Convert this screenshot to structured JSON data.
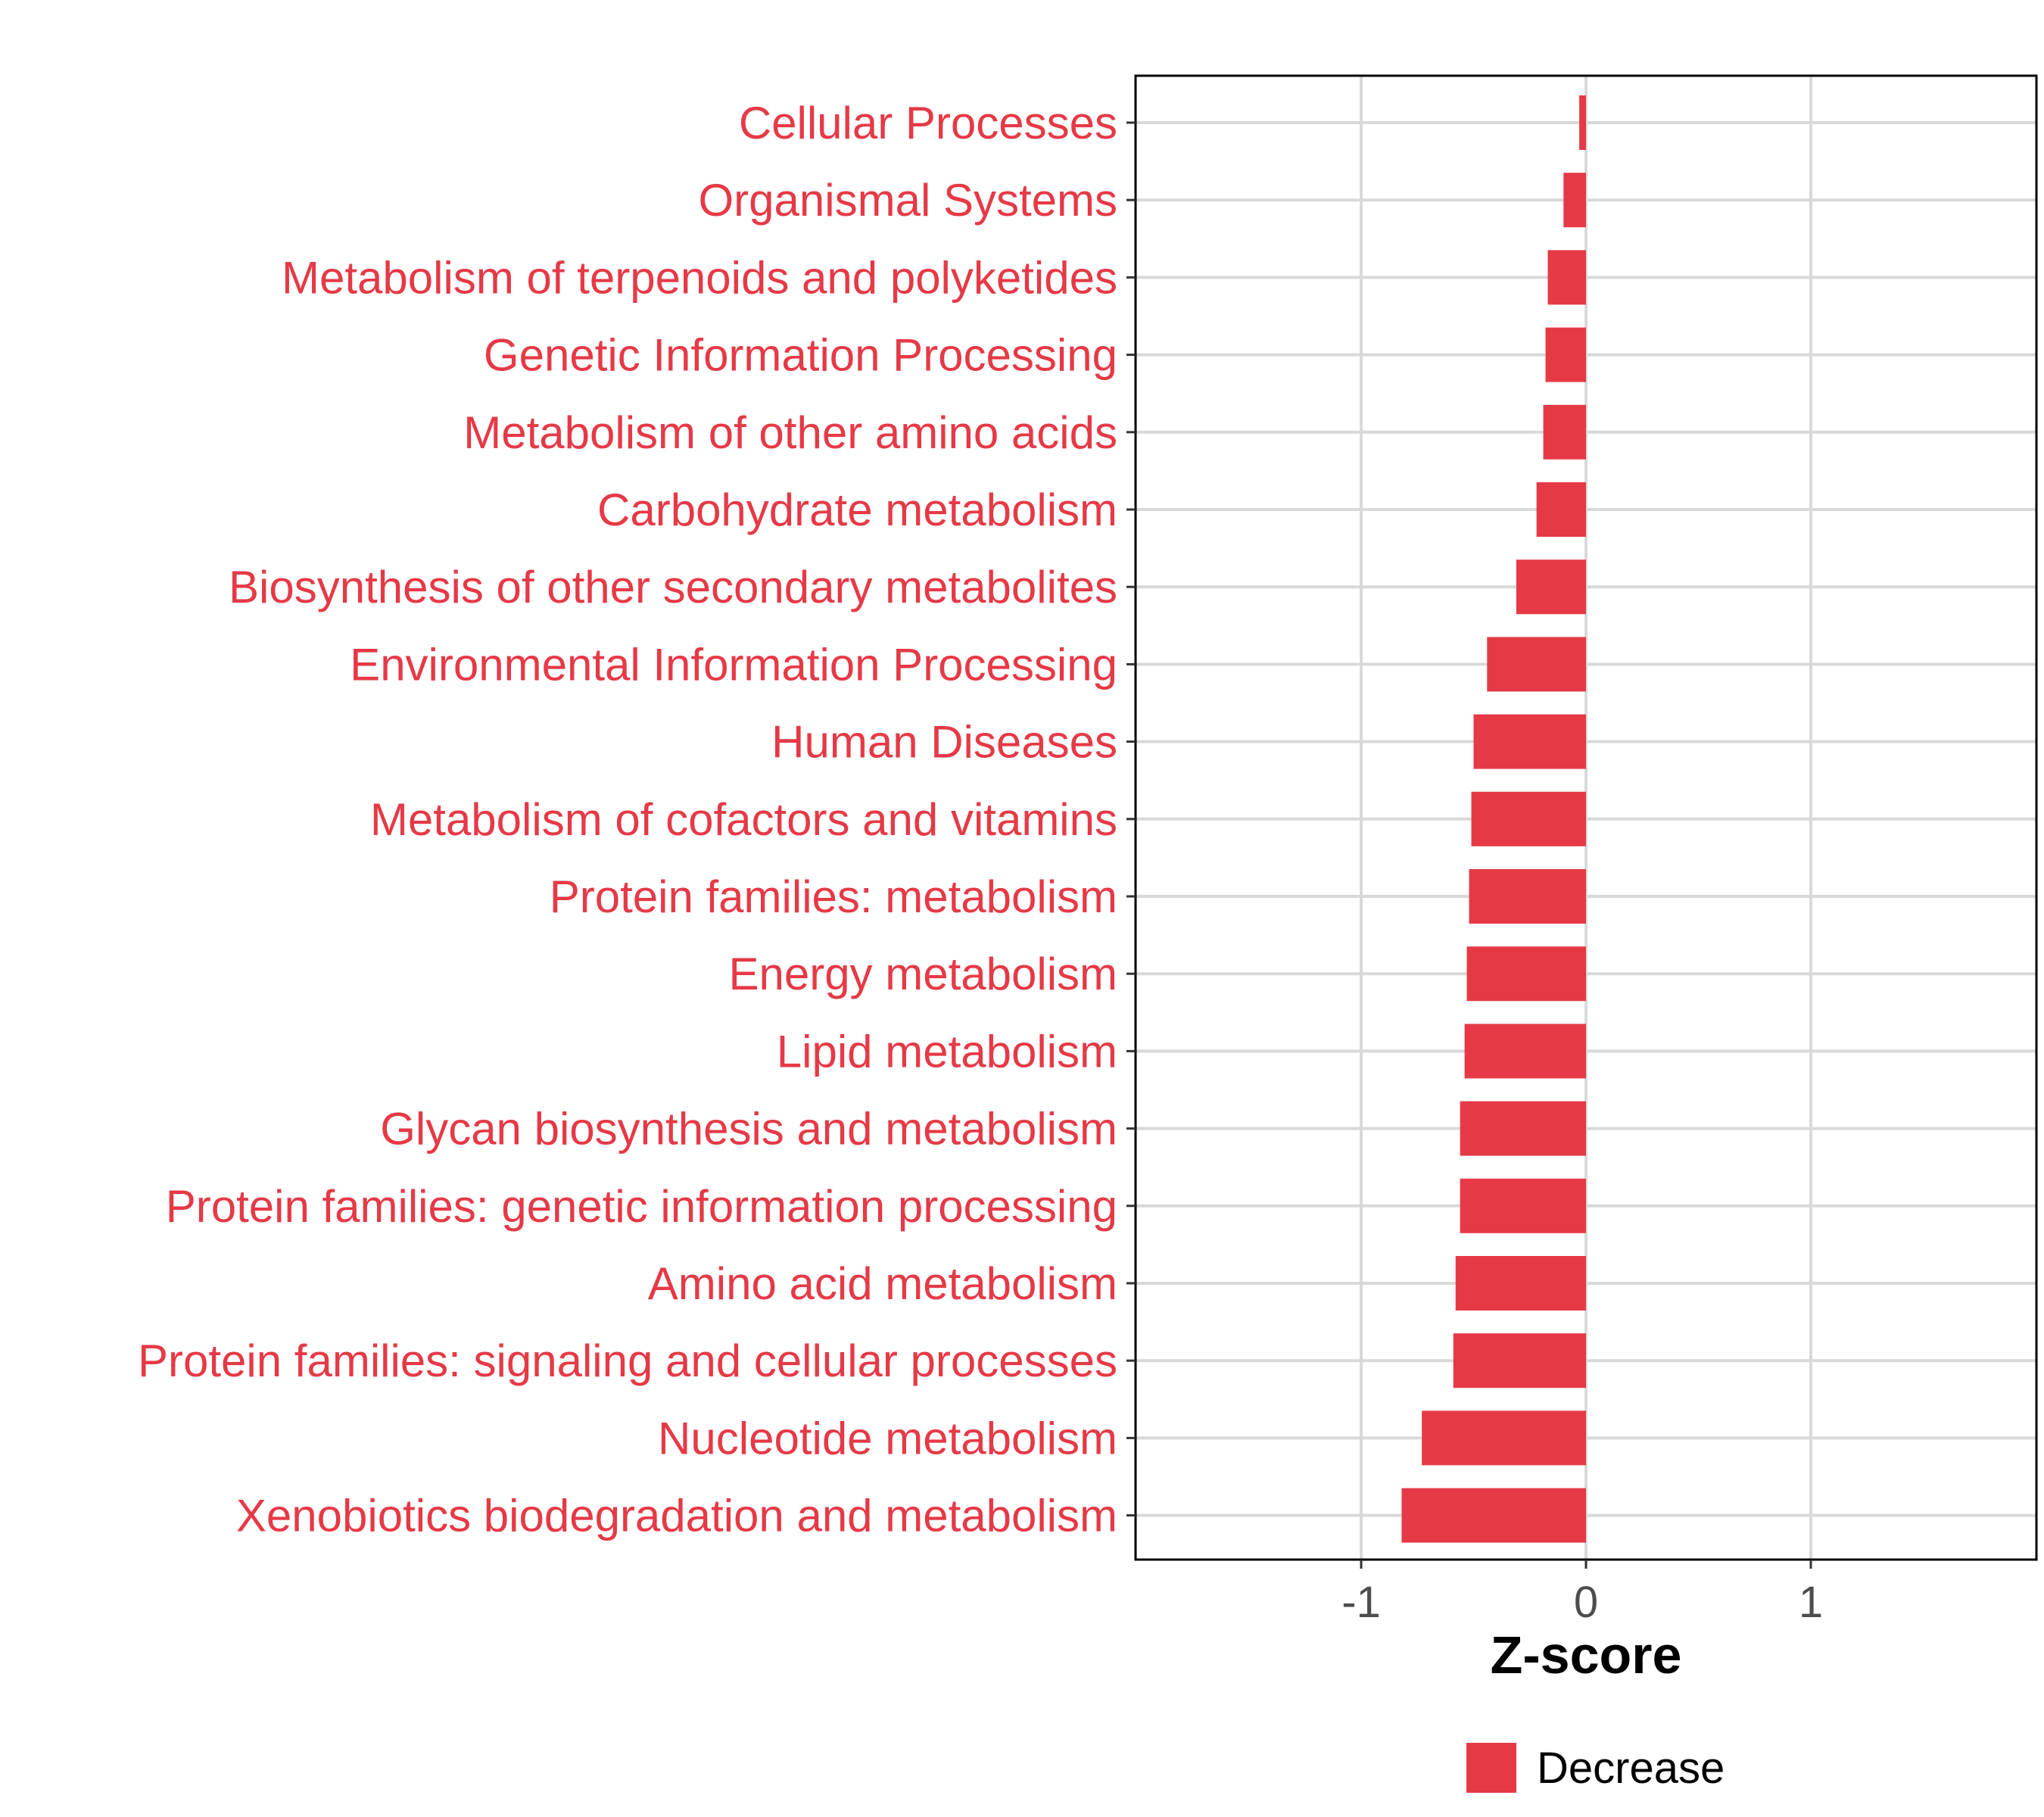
{
  "chart_data": {
    "type": "bar",
    "orientation": "horizontal",
    "title": "",
    "xlabel": "Z-score",
    "ylabel": "",
    "xlim": [
      -2,
      2
    ],
    "xticks": [
      -1,
      0,
      1
    ],
    "xtick_labels": [
      "-1",
      "0",
      "1"
    ],
    "grid": true,
    "categories": [
      "Cellular Processes",
      "Organismal Systems",
      "Metabolism of terpenoids and polyketides",
      "Genetic Information Processing",
      "Metabolism of other amino acids",
      "Carbohydrate metabolism",
      "Biosynthesis of other secondary metabolites",
      "Environmental Information Processing",
      "Human Diseases",
      "Metabolism of cofactors and vitamins",
      "Protein families: metabolism",
      "Energy metabolism",
      "Lipid metabolism",
      "Glycan biosynthesis and metabolism",
      "Protein families: genetic information processing",
      "Amino acid metabolism",
      "Protein families: signaling and cellular processes",
      "Nucleotide metabolism",
      "Xenobiotics biodegradation and metabolism"
    ],
    "values": [
      -0.03,
      -0.1,
      -0.17,
      -0.18,
      -0.19,
      -0.22,
      -0.31,
      -0.44,
      -0.5,
      -0.51,
      -0.52,
      -0.53,
      -0.54,
      -0.56,
      -0.56,
      -0.58,
      -0.59,
      -0.73,
      -0.82
    ],
    "series": [
      {
        "name": "Decrease",
        "color": "#E63946"
      }
    ],
    "legend": {
      "position": "bottom",
      "entries": [
        "Decrease"
      ]
    },
    "colors": {
      "bar": "#E63946",
      "label": "#E63946",
      "grid": "#D9D9D9",
      "border": "#000000"
    }
  }
}
